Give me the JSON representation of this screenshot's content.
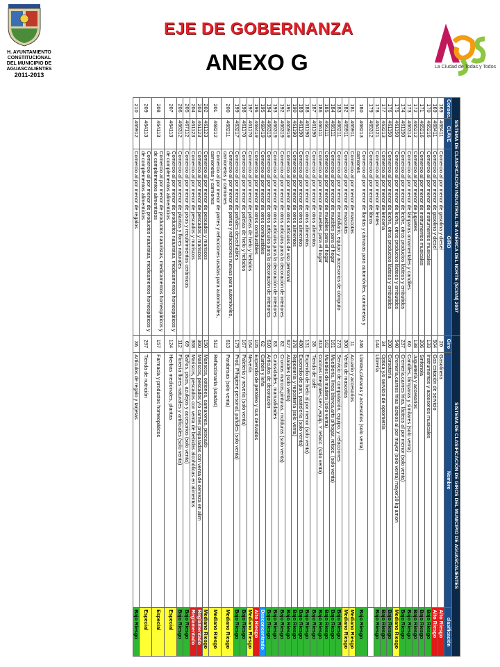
{
  "header": {
    "left_logo_text": [
      "H. AYUNTAMIENTO",
      "CONSTITUCIONAL",
      "DEL MUNICIPIO DE",
      "AGUASCALIENTES",
      "2011-2013"
    ],
    "eje_title": "EJE DE GOBERNANZA",
    "anexo_title": "ANEXO G",
    "right_logo_text": "La Ciudad de Todas y Todos",
    "colors": {
      "eje_red": "#e0212a",
      "ags_green": "#8dc63f",
      "ags_magenta": "#c2185b",
      "ags_orange": "#f39c12"
    }
  },
  "table": {
    "banner_left": "SISTEMA DE CLASIFICACIÓN INDUSTRIAL DE AMÉRICA DEL NORTE (SCIAN) 2007",
    "banner_right": "SISTEMA DE CLASIFICACIÓN DE GIROS DEL MUNICIPIO DE AGUASCALIENTES",
    "columns": [
      "Consec.",
      "CLAVE",
      "GIRO",
      "Giro",
      "Nombre",
      "clasificación"
    ],
    "rows": [
      {
        "consec": "169",
        "clave": "468411",
        "giro": "Comercio al por menor de gasolina y diesel",
        "code": "20",
        "nombre": "Gasolinera",
        "clas": "Alto Riesgo",
        "cc": "c-alto"
      },
      {
        "consec": "169",
        "clave": "468411",
        "giro": "Comercio al por menor de gasolina y diesel",
        "code": "504",
        "nombre": "Gas estación de servicio",
        "clas": "Alto Riesgo",
        "cc": "c-alto"
      },
      {
        "consec": "170",
        "clave": "465216",
        "giro": "Comercio al por menor de instrumentos musicales",
        "code": "133",
        "nombre": "Instrumentos y accesorios musicales",
        "clas": "Bajo Riesgo",
        "cc": "c-bajo"
      },
      {
        "consec": "171",
        "clave": "465216",
        "giro": "Comercio al por menor de instrumentos musicales",
        "code": "206",
        "nombre": "Sinfonola",
        "clas": "Bajo Riesgo",
        "cc": "c-bajo"
      },
      {
        "consec": "172",
        "clave": "465212",
        "giro": "Comercio al por menor de juguetes",
        "code": "138",
        "nombre": "Juguetería y accesorios",
        "clas": "Bajo Riesgo",
        "cc": "c-bajo"
      },
      {
        "consec": "173",
        "clave": "466314",
        "giro": "Comercio al por menor de lámparas ornamentales y candiles",
        "code": "60",
        "nombre": "Candiles, lámparas y similares (solo venta)",
        "clas": "Bajo Riesgo",
        "cc": "c-bajo"
      },
      {
        "consec": "174",
        "clave": "461150",
        "giro": "Comercio al por menor de leche, otros productos lácteos y embutidos",
        "code": "237",
        "nombre": "Cremería,carnes frías, lácteos al por menor (solo venta)",
        "clas": "Bajo Riesgo",
        "cc": "c-bajo"
      },
      {
        "consec": "175",
        "clave": "461150",
        "giro": "Comercio al por menor de leche, otros productos lácteos y embutidos",
        "code": "540",
        "nombre": "Cremería,carnes frías lácteos al por mayor (solo venta) mayor10 kg amon",
        "clas": "Mediano Riesgo",
        "cc": "c-med"
      },
      {
        "consec": "176",
        "clave": "461150",
        "giro": "Comercio al por menor de leche, otros productos lácteos y embutidos",
        "code": "200",
        "nombre": "Corsetería",
        "clas": "Bajo Riesgo",
        "cc": "c-bajo"
      },
      {
        "consec": "177",
        "clave": "463213",
        "giro": "Comercio al por menor de lencería",
        "code": "34",
        "nombre": "Óptica y/o servicio de optometría",
        "clas": "Bajo Riesgo",
        "cc": "c-bajo"
      },
      {
        "consec": "178",
        "clave": "464121",
        "giro": "Comercio al por menor de lentes",
        "code": "144",
        "nombre": "Librería",
        "clas": "Bajo Riesgo",
        "cc": "c-bajo"
      },
      {
        "consec": "179",
        "clave": "465312",
        "giro": "Comercio al por menor de libros",
        "code": "",
        "nombre": "",
        "clas": "",
        "cc": ""
      },
      {
        "consec": "180",
        "clave": "468213",
        "giro": "Comercio al por menor de llantas y cámaras para automóviles, camionetas y camiones",
        "code": "246",
        "nombre": "Llantas,cámaras y accesorios (solo venta)",
        "clas": "Bajo Riesgo",
        "cc": "c-bajo",
        "tall": true
      },
      {
        "consec": "181",
        "clave": "465911",
        "giro": "Comercio al por menor de mascotas",
        "code": "11",
        "nombre": "Acuario y accesorios",
        "clas": "Mediano Riesgo",
        "cc": "c-med"
      },
      {
        "consec": "182",
        "clave": "465911",
        "giro": "Comercio al por menor de mascotas",
        "code": "300",
        "nombre": "Venta de mascotas",
        "clas": "Mediano Riesgo",
        "cc": "c-med"
      },
      {
        "consec": "183",
        "clave": "466211",
        "giro": "Comercio al por menor de mobiliario, equipo y accesorios de cómputo",
        "code": "273",
        "nombre": "Servicio de computación, equipo, y refacciones",
        "clas": "Bajo Riesgo",
        "cc": "c-bajo"
      },
      {
        "consec": "184",
        "clave": "466111",
        "giro": "Comercio al por menor de muebles para el hogar",
        "code": "161",
        "nombre": "Mueblería, línea blanca,arts p/hogar, refacc. (solo venta)",
        "clas": "Bajo Riesgo",
        "cc": "c-bajo"
      },
      {
        "consec": "185",
        "clave": "466111",
        "giro": "Comercio al por menor de muebles para el hogar",
        "code": "162",
        "nombre": "Muebles de madera (solo venta)",
        "clas": "Bajo Riesgo",
        "cc": "c-bajo"
      },
      {
        "consec": "186",
        "clave": "466111",
        "giro": "Comercio al por menor de muebles para el hogar",
        "code": "313",
        "nombre": "Cocinas integrales,serv.,equip. Y refacc. (solo venta)",
        "clas": "Bajo Riesgo",
        "cc": "c-bajo"
      },
      {
        "consec": "187",
        "clave": "461190",
        "giro": "Comercio al por menor de otros alimentos",
        "code": "38",
        "nombre": "Tienda de café",
        "clas": "Bajo Riesgo",
        "cc": "c-bajo"
      },
      {
        "consec": "188",
        "clave": "461190",
        "giro": "Comercio al por menor de otros alimentos",
        "code": "131",
        "nombre": "Expendio de hielo al por menor (solo venta)",
        "clas": "Bajo Riesgo",
        "cc": "c-bajo"
      },
      {
        "consec": "189",
        "clave": "461190",
        "giro": "Comercio al por menor de otros alimentos",
        "code": "480",
        "nombre": "Expendio de pan, pastelería (solo venta)",
        "clas": "Bajo Riesgo",
        "cc": "c-bajo"
      },
      {
        "consec": "190",
        "clave": "461190",
        "giro": "Comercio al por menor de otros alimentos",
        "code": "378",
        "nombre": "Repostería y repostería (solo venta)",
        "clas": "Bajo Riesgo",
        "cc": "c-bajo"
      },
      {
        "consec": "191",
        "clave": "465919",
        "giro": "Comercio al por menor de otros artículos de uso personal",
        "code": "627",
        "nombre": "Ataúdes (solo venta)",
        "clas": "Bajo Riesgo",
        "cc": "c-bajo"
      },
      {
        "consec": "192",
        "clave": "466319",
        "giro": "Comercio al por menor de otros artículos para la decoración de interiores",
        "code": "82",
        "nombre": "Cromos marcos,pinturas, molduras (solo venta)",
        "clas": "Bajo Riesgo",
        "cc": "c-bajo"
      },
      {
        "consec": "193",
        "clave": "466319",
        "giro": "Comercio al por menor de otros artículos para la decoración de interiores",
        "code": "83",
        "nombre": "Curiosidades, manualidades",
        "clas": "Bajo Riesgo",
        "cc": "c-bajo"
      },
      {
        "consec": "194",
        "clave": "466319",
        "giro": "Comercio al por menor de otros artículos para la decoración de interiores",
        "code": "610",
        "nombre": "Artículos de decoración",
        "clas": "Bajo Riesgo",
        "cc": "c-bajo"
      },
      {
        "consec": "195",
        "clave": "468419",
        "giro": "Comercio al por menor de otros combustibles",
        "code": "62",
        "nombre": "Carbón y leña",
        "clas": "Desconcentrado",
        "cc": "c-desc"
      },
      {
        "consec": "196",
        "clave": "468419",
        "giro": "Comercio al por menor de otros combustibles",
        "code": "105",
        "nombre": "Expendio de petróleo y sus derivados",
        "clas": "Alto Riesgo",
        "cc": "c-alto"
      },
      {
        "consec": "197",
        "clave": "461170",
        "giro": "Comercio al por menor de paletas de hielo y helados",
        "code": "164",
        "nombre": "Nevería",
        "clas": "Mediano Riesgo",
        "cc": "c-med"
      },
      {
        "consec": "198",
        "clave": "461170",
        "giro": "Comercio al por menor de paletas de hielo y helados",
        "code": "167",
        "nombre": "Paletería y nevería (solo venta)",
        "clas": "Bajo Riesgo",
        "cc": "c-bajo"
      },
      {
        "consec": "199",
        "clave": "463217",
        "giro": "Comercio al por menor de pañales desechables",
        "code": "179",
        "nombre": "Prod. P/higiene personal, pañales (solo venta)",
        "clas": "Bajo Riesgo",
        "cc": "c-bajo"
      },
      {
        "consec": "200",
        "clave": "468211",
        "giro": "Comercio al por menor de partes y refacciones nuevas para automóviles, camionetas y camiones",
        "code": "613",
        "nombre": "Parabrisas (solo venta)",
        "clas": "Mediano Riesgo",
        "cc": "c-med",
        "tall": true
      },
      {
        "consec": "201",
        "clave": "468212",
        "giro": "Comercio al por menor de partes y refacciones usadas para automóviles, camionetas y camiones",
        "code": "512",
        "nombre": "Refaccionaria (usadas)",
        "clas": "Mediano Riesgo",
        "cc": "c-med",
        "tall": true
      },
      {
        "consec": "202",
        "clave": "461123",
        "giro": "Comercio al por menor de pescados y mariscos",
        "code": "150",
        "nombre": "Mariscos, ostiones, camarones, pescado",
        "clas": "Mediano Riesgo",
        "cc": "c-med"
      },
      {
        "consec": "203",
        "clave": "461123",
        "giro": "Comercio al por menor de pescados y mariscos",
        "code": "360",
        "nombre": "Mariscos, pescados y/o carnes preparadas con venta de cerveza en alim",
        "clas": "Reglamentado",
        "cc": "c-reg"
      },
      {
        "consec": "204",
        "clave": "461123",
        "giro": "Comercio al por menor de pescados y mariscos",
        "code": "368",
        "nombre": "Mariscos, pescados con venta de bebidas alcohólicas en alimentos",
        "clas": "Reglamentado",
        "cc": "c-reg"
      },
      {
        "consec": "205",
        "clave": "467112",
        "giro": "Comercio al por menor de pisos y recubrimientos cerámicos",
        "code": "69",
        "nombre": "Baños, pisos, azulejos y accesorios (solo venta)",
        "clas": "Bajo Riesgo",
        "cc": "c-bajo"
      },
      {
        "consec": "206",
        "clave": "466312",
        "giro": "Comercio al por menor de plantas y flores naturales",
        "code": "112",
        "nombre": "Florería flores naturales y artificiales (solo venta)",
        "clas": "Bajo Riesgo",
        "cc": "c-bajo"
      },
      {
        "consec": "207",
        "clave": "464113",
        "giro": "Comercio al por menor de productos naturistas, medicamentos homeopáticos y de complementos alimenticios",
        "code": "124",
        "nombre": "Hierbas medicinales, plantas",
        "clas": "Especial",
        "cc": "c-esp",
        "tall": true
      },
      {
        "consec": "208",
        "clave": "464113",
        "giro": "Comercio al por menor de productos naturistas, medicamentos homeopáticos y de complementos alimenticios",
        "code": "157",
        "nombre": "Farmacia y productos homeopáticos",
        "clas": "Especial",
        "cc": "c-esp",
        "tall": true
      },
      {
        "consec": "209",
        "clave": "464113",
        "giro": "Comercio al por menor de productos naturistas, medicamentos homeopáticos y de complementos alimenticios",
        "code": "297",
        "nombre": "Tienda de nutrición",
        "clas": "Especial",
        "cc": "c-esp",
        "tall": true
      },
      {
        "consec": "210",
        "clave": "465912",
        "giro": "Comercio al por menor de regalos",
        "code": "36",
        "nombre": "Artículos de regalo y tarjetas",
        "clas": "Bajo Riesgo",
        "cc": "c-bajo"
      }
    ]
  }
}
